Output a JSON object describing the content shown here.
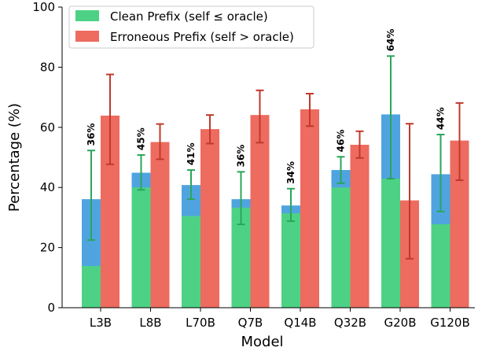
{
  "chart_data": {
    "type": "bar",
    "xlabel": "Model",
    "ylabel": "Percentage (%)",
    "ylim": [
      0,
      100
    ],
    "yticks": [
      0,
      20,
      40,
      60,
      80,
      100
    ],
    "grid": false,
    "legend_placement": "top-left",
    "categories": [
      "L3B",
      "L8B",
      "L70B",
      "Q7B",
      "Q14B",
      "Q32B",
      "G20B",
      "G120B"
    ],
    "clean": {
      "name": "Clean Prefix (self ≤ oracle)",
      "color": "#4dd285",
      "values": [
        13.9,
        40.0,
        30.5,
        33.3,
        31.4,
        40.0,
        42.9,
        27.8
      ],
      "errors": [
        [
          22.5,
          52.3
        ],
        [
          39.2,
          50.8
        ],
        [
          36.1,
          45.8
        ],
        [
          27.7,
          45.2
        ],
        [
          28.8,
          39.6
        ],
        [
          41.4,
          50.2
        ],
        [
          42.9,
          83.7
        ],
        [
          32.0,
          57.6
        ]
      ],
      "error_color": "#2aa65a"
    },
    "extra": {
      "color": "#4fa4e0",
      "tops": [
        36.1,
        44.9,
        40.8,
        36.1,
        34.0,
        45.8,
        64.3,
        44.4
      ]
    },
    "erroneous": {
      "name": "Erroneous Prefix (self > oracle)",
      "color": "#ed6b5f",
      "values": [
        63.9,
        55.1,
        59.4,
        64.1,
        66.0,
        54.2,
        35.7,
        55.6
      ],
      "errors": [
        [
          47.7,
          77.6
        ],
        [
          49.4,
          61.1
        ],
        [
          54.6,
          64.1
        ],
        [
          54.9,
          72.3
        ],
        [
          60.4,
          71.2
        ],
        [
          49.8,
          58.7
        ],
        [
          16.3,
          61.2
        ],
        [
          42.4,
          68.1
        ]
      ],
      "error_color": "#c0392b"
    },
    "annotations": [
      "36%",
      "45%",
      "41%",
      "36%",
      "34%",
      "46%",
      "64%",
      "44%"
    ]
  }
}
